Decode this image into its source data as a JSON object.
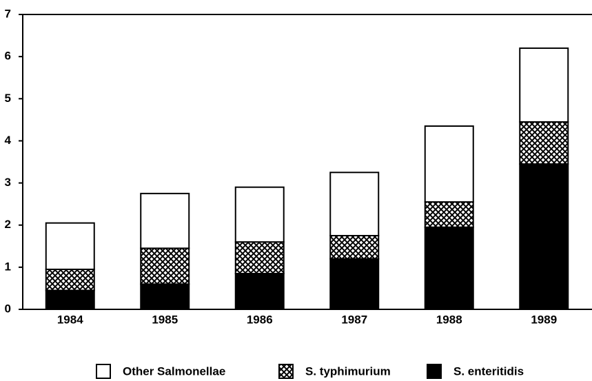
{
  "chart_data": {
    "type": "stacked_bar",
    "categories": [
      "1984",
      "1985",
      "1986",
      "1987",
      "1988",
      "1989"
    ],
    "series": [
      {
        "name": "S. enteritidis",
        "color": "#000000",
        "values": [
          0.45,
          0.6,
          0.85,
          1.2,
          1.95,
          3.45
        ]
      },
      {
        "name": "S. typhimurium",
        "color": "#000000",
        "pattern": "crosshatch",
        "values": [
          0.5,
          0.85,
          0.75,
          0.55,
          0.6,
          1.0
        ]
      },
      {
        "name": "Other Salmonellae",
        "color": "#ffffff",
        "values": [
          1.1,
          1.3,
          1.3,
          1.5,
          1.8,
          1.75
        ]
      }
    ],
    "legend_order": [
      2,
      1,
      0
    ],
    "ylim": [
      0,
      7
    ],
    "yticks": [
      0,
      1,
      2,
      3,
      4,
      5,
      6,
      7
    ],
    "grid": false
  }
}
